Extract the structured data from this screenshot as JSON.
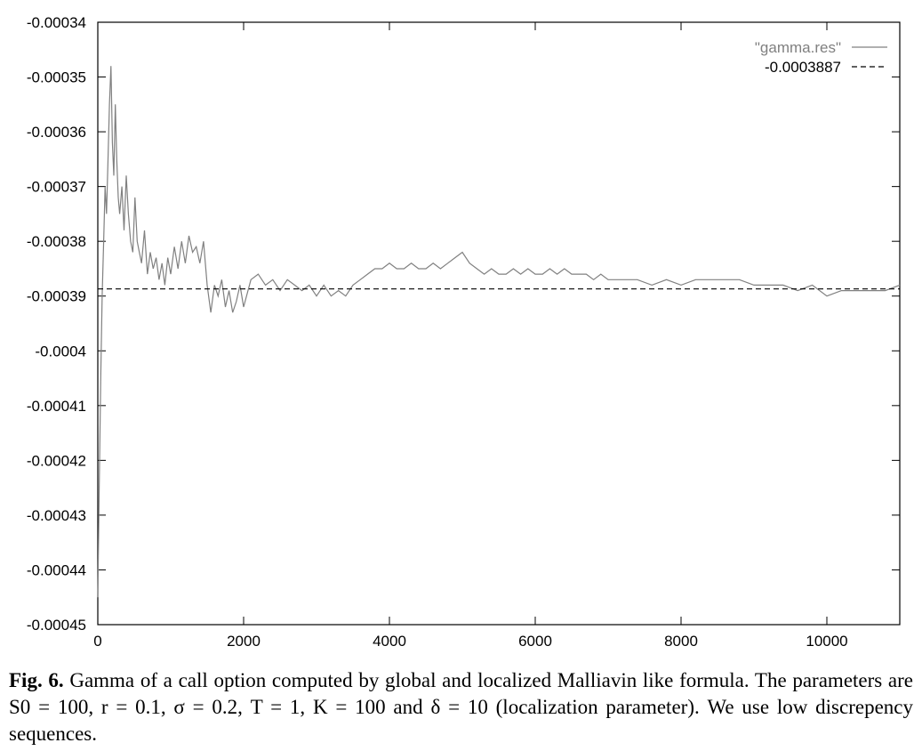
{
  "chart_data": {
    "type": "line",
    "title": "",
    "xlabel": "",
    "ylabel": "",
    "xlim": [
      0,
      11000
    ],
    "ylim": [
      -0.00045,
      -0.00034
    ],
    "x_ticks": [
      0,
      2000,
      4000,
      6000,
      8000,
      10000
    ],
    "x_tick_labels": [
      "0",
      "2000",
      "4000",
      "6000",
      "8000",
      "10000"
    ],
    "y_ticks": [
      -0.00034,
      -0.00035,
      -0.00036,
      -0.00037,
      -0.00038,
      -0.00039,
      -0.0004,
      -0.00041,
      -0.00042,
      -0.00043,
      -0.00044,
      -0.00045
    ],
    "y_tick_labels": [
      "-0.00034",
      "-0.00035",
      "-0.00036",
      "-0.00037",
      "-0.00038",
      "-0.00039",
      "-0.0004",
      "-0.00041",
      "-0.00042",
      "-0.00043",
      "-0.00044",
      "-0.00045"
    ],
    "grid": false,
    "legend_position": "top-right",
    "series": [
      {
        "name": "\"gamma.res\"",
        "style": "solid",
        "color": "#808080",
        "x": [
          0,
          20,
          40,
          60,
          80,
          100,
          120,
          140,
          160,
          180,
          200,
          220,
          240,
          260,
          280,
          300,
          330,
          360,
          390,
          420,
          450,
          480,
          510,
          540,
          570,
          600,
          640,
          680,
          720,
          760,
          800,
          840,
          880,
          920,
          960,
          1000,
          1050,
          1100,
          1150,
          1200,
          1250,
          1300,
          1350,
          1400,
          1450,
          1500,
          1550,
          1600,
          1650,
          1700,
          1750,
          1800,
          1850,
          1900,
          1950,
          2000,
          2100,
          2200,
          2300,
          2400,
          2500,
          2600,
          2700,
          2800,
          2900,
          3000,
          3100,
          3200,
          3300,
          3400,
          3500,
          3600,
          3700,
          3800,
          3900,
          4000,
          4100,
          4200,
          4300,
          4400,
          4500,
          4600,
          4700,
          4800,
          4900,
          5000,
          5100,
          5200,
          5300,
          5400,
          5500,
          5600,
          5700,
          5800,
          5900,
          6000,
          6100,
          6200,
          6300,
          6400,
          6500,
          6600,
          6700,
          6800,
          6900,
          7000,
          7200,
          7400,
          7600,
          7800,
          8000,
          8200,
          8400,
          8600,
          8800,
          9000,
          9200,
          9400,
          9600,
          9800,
          10000,
          10200,
          10400,
          10600,
          10800,
          11000
        ],
        "values": [
          -0.000445,
          -0.000425,
          -0.000405,
          -0.00039,
          -0.00038,
          -0.00037,
          -0.000375,
          -0.000365,
          -0.000355,
          -0.000348,
          -0.000362,
          -0.000368,
          -0.000355,
          -0.000365,
          -0.000372,
          -0.000375,
          -0.00037,
          -0.000378,
          -0.000368,
          -0.000375,
          -0.00038,
          -0.000382,
          -0.000372,
          -0.00038,
          -0.000382,
          -0.000384,
          -0.000378,
          -0.000386,
          -0.000382,
          -0.000385,
          -0.000383,
          -0.000387,
          -0.000384,
          -0.000388,
          -0.000383,
          -0.000386,
          -0.000381,
          -0.000385,
          -0.00038,
          -0.000384,
          -0.000379,
          -0.000382,
          -0.000381,
          -0.000384,
          -0.00038,
          -0.000388,
          -0.000393,
          -0.000388,
          -0.00039,
          -0.000387,
          -0.000392,
          -0.000389,
          -0.000393,
          -0.000391,
          -0.000388,
          -0.000392,
          -0.000387,
          -0.000386,
          -0.000388,
          -0.000387,
          -0.000389,
          -0.000387,
          -0.000388,
          -0.000389,
          -0.000388,
          -0.00039,
          -0.000388,
          -0.00039,
          -0.000389,
          -0.00039,
          -0.000388,
          -0.000387,
          -0.000386,
          -0.000385,
          -0.000385,
          -0.000384,
          -0.000385,
          -0.000385,
          -0.000384,
          -0.000385,
          -0.000385,
          -0.000384,
          -0.000385,
          -0.000384,
          -0.000383,
          -0.000382,
          -0.000384,
          -0.000385,
          -0.000386,
          -0.000385,
          -0.000386,
          -0.000386,
          -0.000385,
          -0.000386,
          -0.000385,
          -0.000386,
          -0.000386,
          -0.000385,
          -0.000386,
          -0.000385,
          -0.000386,
          -0.000386,
          -0.000386,
          -0.000387,
          -0.000386,
          -0.000387,
          -0.000387,
          -0.000387,
          -0.000388,
          -0.000387,
          -0.000388,
          -0.000387,
          -0.000387,
          -0.000387,
          -0.000387,
          -0.000388,
          -0.000388,
          -0.000388,
          -0.000389,
          -0.000388,
          -0.00039,
          -0.000389,
          -0.000389,
          -0.000389,
          -0.000389,
          -0.000388
        ]
      },
      {
        "name": "-0.0003887",
        "style": "dashed",
        "color": "#000000",
        "x": [
          0,
          11000
        ],
        "values": [
          -0.0003887,
          -0.0003887
        ]
      }
    ]
  },
  "caption": {
    "label": "Fig. 6.",
    "text": " Gamma of a call option computed by global and localized Malliavin like formula. The parameters are S0 = 100, r = 0.1, σ = 0.2, T = 1, K = 100 and δ = 10 (localization parameter). We use low discrepency sequences."
  }
}
